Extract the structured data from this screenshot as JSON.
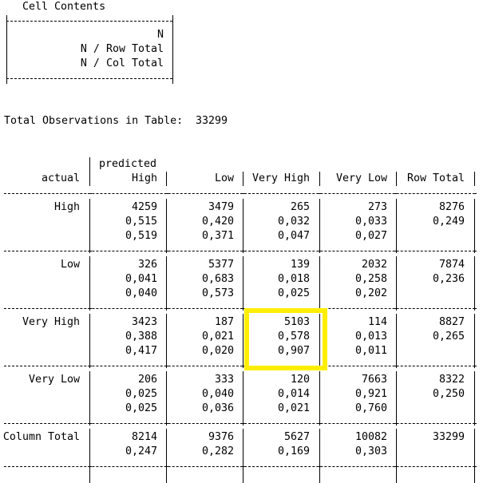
{
  "legend": {
    "title": "Cell Contents",
    "lines": [
      "N",
      "N / Row Total",
      "N / Col Total"
    ]
  },
  "total_obs": {
    "label": "Total Observations in Table:",
    "value": "33299"
  },
  "table": {
    "header_predicted": "predicted",
    "header_actual": "actual",
    "columns": [
      "High",
      "Low",
      "Very High",
      "Very Low",
      "Row Total"
    ],
    "rows": [
      {
        "label": "High",
        "cells": [
          [
            "4259",
            "0,515",
            "0,519"
          ],
          [
            "3479",
            "0,420",
            "0,371"
          ],
          [
            "265",
            "0,032",
            "0,047"
          ],
          [
            "273",
            "0,033",
            "0,027"
          ],
          [
            "8276",
            "0,249",
            ""
          ]
        ]
      },
      {
        "label": "Low",
        "cells": [
          [
            "326",
            "0,041",
            "0,040"
          ],
          [
            "5377",
            "0,683",
            "0,573"
          ],
          [
            "139",
            "0,018",
            "0,025"
          ],
          [
            "2032",
            "0,258",
            "0,202"
          ],
          [
            "7874",
            "0,236",
            ""
          ]
        ]
      },
      {
        "label": "Very High",
        "cells": [
          [
            "3423",
            "0,388",
            "0,417"
          ],
          [
            "187",
            "0,021",
            "0,020"
          ],
          [
            "5103",
            "0,578",
            "0,907"
          ],
          [
            "114",
            "0,013",
            "0,011"
          ],
          [
            "8827",
            "0,265",
            ""
          ]
        ]
      },
      {
        "label": "Very Low",
        "cells": [
          [
            "206",
            "0,025",
            "0,025"
          ],
          [
            "333",
            "0,040",
            "0,036"
          ],
          [
            "120",
            "0,014",
            "0,021"
          ],
          [
            "7663",
            "0,921",
            "0,760"
          ],
          [
            "8322",
            "0,250",
            ""
          ]
        ]
      },
      {
        "label": "Column Total",
        "cells": [
          [
            "8214",
            "0,247",
            ""
          ],
          [
            "9376",
            "0,282",
            ""
          ],
          [
            "5627",
            "0,169",
            ""
          ],
          [
            "10082",
            "0,303",
            ""
          ],
          [
            "33299",
            "",
            ""
          ]
        ]
      }
    ]
  },
  "highlight_color": "#ffee00"
}
